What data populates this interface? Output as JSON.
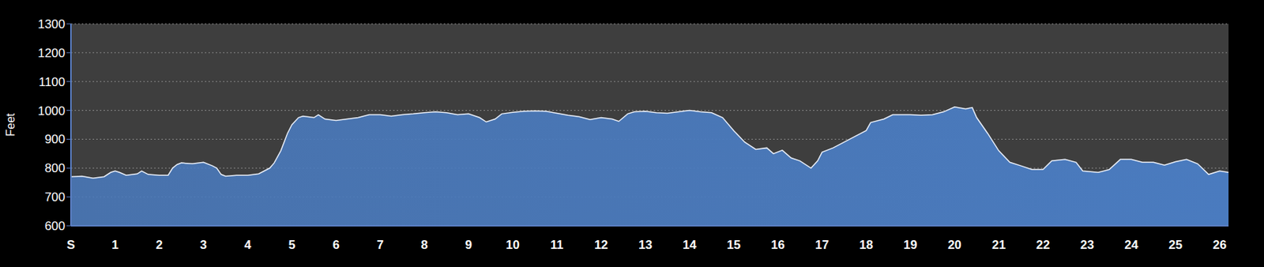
{
  "chart_data": {
    "type": "area",
    "y_label": "Feet",
    "color": "#4a7bbf",
    "grid": true,
    "xlim": [
      0,
      26.2
    ],
    "xticks": [
      {
        "value": 0,
        "label": "S"
      },
      1,
      2,
      3,
      4,
      5,
      6,
      7,
      8,
      9,
      10,
      11,
      12,
      13,
      14,
      15,
      16,
      17,
      18,
      19,
      20,
      21,
      22,
      23,
      24,
      25,
      26
    ],
    "ylim": [
      600,
      1300
    ],
    "yticks": [
      600,
      700,
      800,
      900,
      1000,
      1100,
      1200,
      1300
    ],
    "x": [
      0,
      0.25,
      0.5,
      0.75,
      0.9,
      1.0,
      1.1,
      1.25,
      1.5,
      1.6,
      1.75,
      2.0,
      2.2,
      2.3,
      2.4,
      2.5,
      2.75,
      3.0,
      3.2,
      3.3,
      3.4,
      3.5,
      3.75,
      4.0,
      4.25,
      4.5,
      4.6,
      4.75,
      4.9,
      5.0,
      5.15,
      5.25,
      5.5,
      5.6,
      5.75,
      6.0,
      6.25,
      6.5,
      6.75,
      7.0,
      7.25,
      7.5,
      7.75,
      8.0,
      8.25,
      8.5,
      8.75,
      9.0,
      9.25,
      9.4,
      9.6,
      9.75,
      10.0,
      10.25,
      10.5,
      10.75,
      11.0,
      11.25,
      11.5,
      11.75,
      12.0,
      12.25,
      12.4,
      12.6,
      12.75,
      13.0,
      13.25,
      13.5,
      13.75,
      14.0,
      14.25,
      14.5,
      14.75,
      15.0,
      15.25,
      15.5,
      15.75,
      15.9,
      16.1,
      16.3,
      16.5,
      16.75,
      16.9,
      17.0,
      17.25,
      17.5,
      17.75,
      18.0,
      18.1,
      18.4,
      18.6,
      19.0,
      19.25,
      19.5,
      19.75,
      20.0,
      20.25,
      20.4,
      20.5,
      20.75,
      21.0,
      21.25,
      21.5,
      21.75,
      22.0,
      22.2,
      22.5,
      22.75,
      22.9,
      23.25,
      23.5,
      23.75,
      24.0,
      24.25,
      24.5,
      24.75,
      25.0,
      25.25,
      25.5,
      25.75,
      26.0,
      26.2
    ],
    "values": [
      770,
      772,
      765,
      770,
      785,
      790,
      785,
      775,
      780,
      790,
      778,
      775,
      775,
      800,
      812,
      818,
      815,
      820,
      808,
      800,
      778,
      772,
      775,
      775,
      780,
      800,
      818,
      860,
      920,
      950,
      975,
      980,
      975,
      985,
      970,
      965,
      970,
      975,
      985,
      985,
      980,
      985,
      988,
      992,
      995,
      992,
      985,
      988,
      975,
      960,
      970,
      988,
      993,
      997,
      998,
      997,
      990,
      983,
      978,
      968,
      975,
      970,
      962,
      988,
      995,
      997,
      992,
      990,
      995,
      1000,
      995,
      992,
      975,
      930,
      890,
      865,
      870,
      850,
      862,
      835,
      825,
      800,
      825,
      855,
      870,
      890,
      910,
      930,
      958,
      970,
      985,
      985,
      983,
      985,
      995,
      1012,
      1005,
      1010,
      975,
      920,
      860,
      820,
      808,
      795,
      795,
      825,
      830,
      820,
      790,
      785,
      795,
      830,
      830,
      820,
      820,
      810,
      822,
      830,
      815,
      778,
      790,
      785
    ]
  }
}
